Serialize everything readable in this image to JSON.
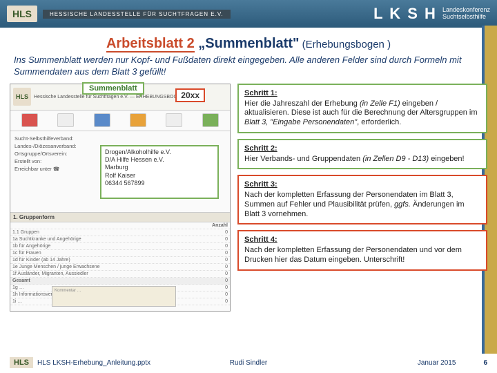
{
  "topbar": {
    "hls": "HLS",
    "sub": "HESSISCHE LANDESSTELLE FÜR SUCHTFRAGEN E.V.",
    "lksh": "L K S H",
    "lksh_sub1": "Landeskonferenz",
    "lksh_sub2": "Suchtselbsthilfe"
  },
  "title": {
    "underline": "Arbeitsblatt 2",
    "rest": " „Summenblatt\"",
    "paren": " (Erhebungsbogen )"
  },
  "intro": "Ins Summenblatt werden nur Kopf- und Fußdaten direkt eingegeben. Alle anderen Felder sind durch Formeln mit Summendaten aus dem Blatt 3 gefüllt!",
  "form": {
    "summen_label": "Summenblatt",
    "year": "20xx",
    "header_title": "Hessische Landesstelle für Suchtfragen e.V. — ERHEBUNGSBOGEN",
    "fields": [
      {
        "label": "Sucht-Selbsthilfeverband:",
        "val": ""
      },
      {
        "label": "Landes-/Diözesanverband:",
        "val": ""
      },
      {
        "label": "Ortsgruppe/Ortsverein:",
        "val": ""
      },
      {
        "label": "Erstellt von:",
        "val": ""
      },
      {
        "label": "Erreichbar unter ☎",
        "val": ""
      }
    ],
    "greenbox": "Drogen/Alkoholhilfe e.V.\nD/A Hilfe Hessen e.V.\nMarburg\nRolf Kaiser\n06344 567899",
    "section": "1. Gruppenform",
    "col_r": "Anzahl",
    "rows": [
      "1.1 Gruppen",
      "1a Suchtkranke und Angehörige",
      "1b für Angehörige",
      "1c für Frauen",
      "1d für Kinder (ab 14 Jahre)",
      "1e Junge Menschen / junge Erwachsene",
      "1f Ausländer, Migranten, Aussiedler"
    ],
    "sumlabel": "Gesamt",
    "rows2": [
      "1g …",
      "1h Informationsveranstaltungen",
      "1i …"
    ],
    "comment": "Kommentar …"
  },
  "steps": [
    {
      "cls": "g",
      "h": "Schritt 1:",
      "body": "Hier die Jahreszahl der Erhebung <em>(in Zelle F1)</em> eingeben / aktualisieren. Diese ist auch für die Berechnung der Altersgruppen im <em>Blatt 3, \"Eingabe Personendaten\"</em>, erforderlich."
    },
    {
      "cls": "g",
      "h": "Schritt 2:",
      "body": "Hier Verbands- und Gruppendaten <em>(in Zellen D9 - D13)</em> eingeben!"
    },
    {
      "cls": "r",
      "h": "Schritt 3:",
      "body": "Nach der kompletten Erfassung der Personendaten im Blatt 3, Summen auf Fehler und Plausibilität prüfen, <em>ggfs.</em> Änderungen im Blatt 3 vornehmen."
    },
    {
      "cls": "r",
      "h": "Schritt 4:",
      "body": "Nach der kompletten Erfassung der Personendaten und vor dem Drucken hier das Datum eingeben. Unterschrift!"
    }
  ],
  "footer": {
    "hls": "HLS",
    "file": "HLS LKSH-Erhebung_Anleitung.pptx",
    "author": "Rudi Sindler",
    "date": "Januar 2015",
    "page": "6"
  }
}
